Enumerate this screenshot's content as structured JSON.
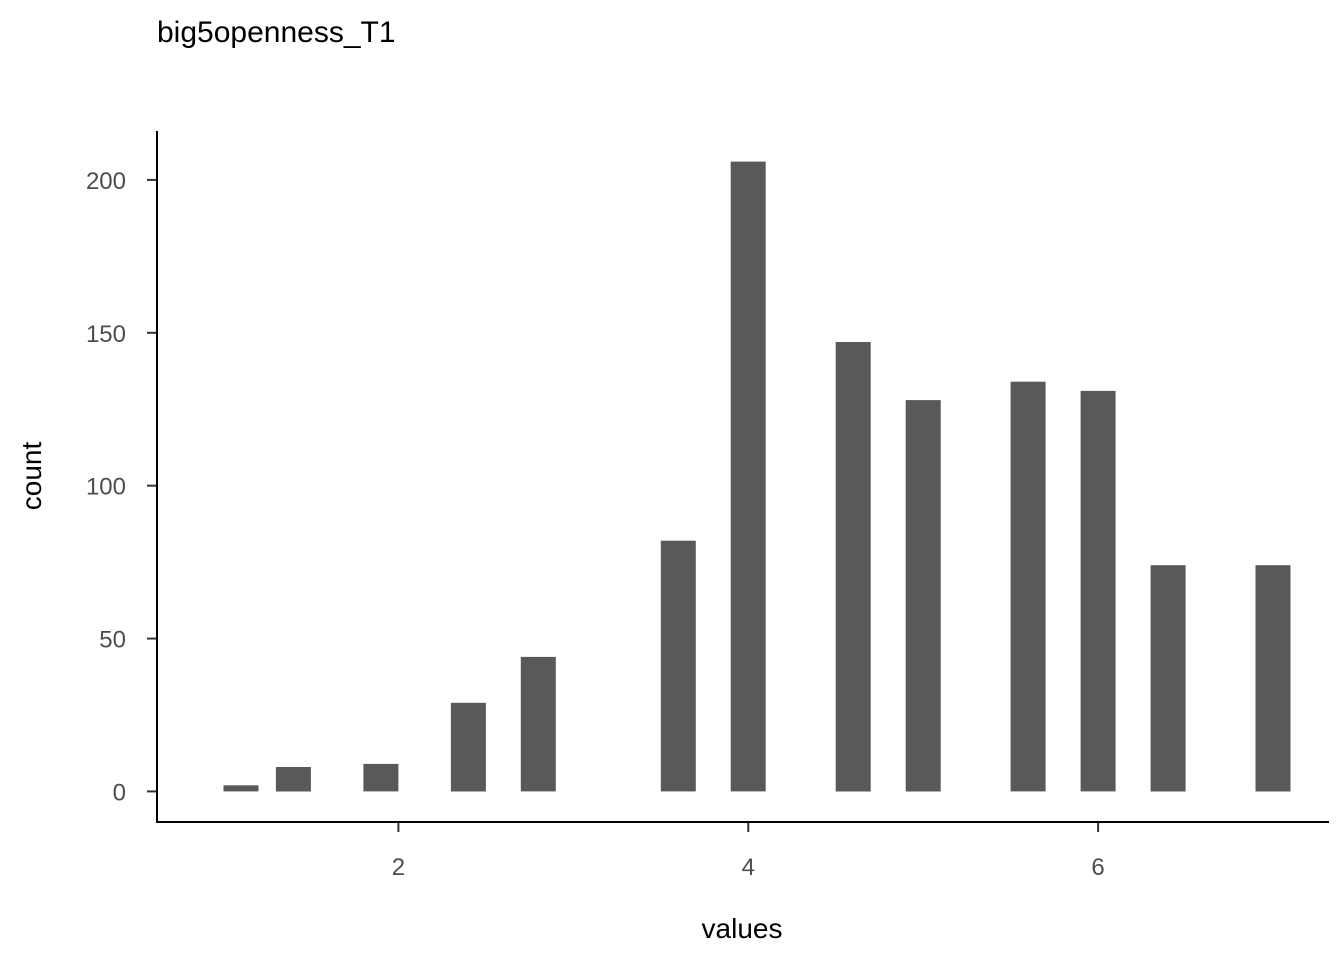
{
  "chart_data": {
    "type": "bar",
    "title": "big5openness_T1",
    "xlabel": "values",
    "ylabel": "count",
    "x": [
      1.1,
      1.4,
      1.9,
      2.4,
      2.8,
      3.6,
      4.0,
      4.6,
      5.0,
      5.6,
      6.0,
      6.4,
      7.0
    ],
    "values": [
      2,
      8,
      9,
      29,
      44,
      82,
      206,
      147,
      128,
      134,
      131,
      74,
      74
    ],
    "xlim": [
      0.62,
      7.32
    ],
    "ylim": [
      -10,
      216
    ],
    "xticks": [
      2,
      4,
      6
    ],
    "yticks": [
      0,
      50,
      100,
      150,
      200
    ],
    "xtick_labels": [
      "2",
      "4",
      "6"
    ],
    "ytick_labels": [
      "0",
      "50",
      "100",
      "150",
      "200"
    ],
    "bar_color": "#595959",
    "grid": false
  }
}
